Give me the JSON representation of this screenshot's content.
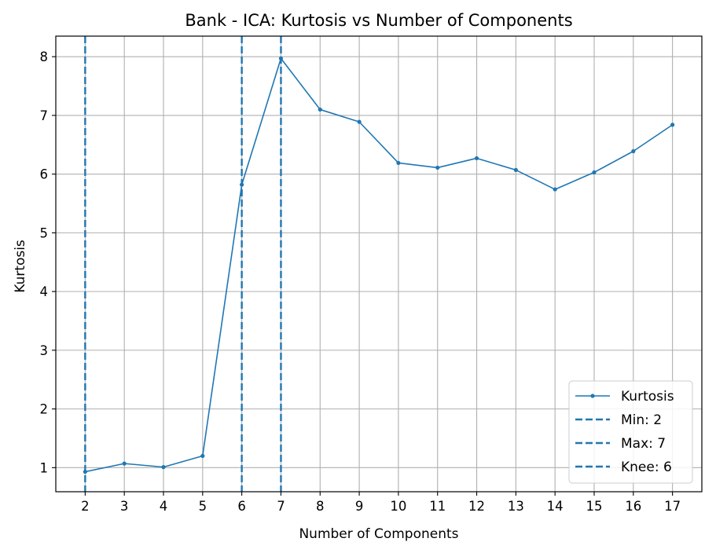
{
  "chart_data": {
    "type": "line",
    "title": "Bank - ICA: Kurtosis vs Number of Components",
    "xlabel": "Number of Components",
    "ylabel": "Kurtosis",
    "x": [
      2,
      3,
      4,
      5,
      6,
      7,
      8,
      9,
      10,
      11,
      12,
      13,
      14,
      15,
      16,
      17
    ],
    "xlim": [
      1.25,
      17.75
    ],
    "ylim": [
      0.59,
      8.35
    ],
    "xticks": [
      "2",
      "3",
      "4",
      "5",
      "6",
      "7",
      "8",
      "9",
      "10",
      "11",
      "12",
      "13",
      "14",
      "15",
      "16",
      "17"
    ],
    "yticks": [
      "1",
      "2",
      "3",
      "4",
      "5",
      "6",
      "7",
      "8"
    ],
    "grid": true,
    "legend_position": "lower-right",
    "series": [
      {
        "name": "Kurtosis",
        "color": "#1f77b4",
        "marker": "dot",
        "values": [
          0.93,
          1.07,
          1.01,
          1.2,
          5.82,
          7.97,
          7.1,
          6.89,
          6.19,
          6.11,
          6.27,
          6.07,
          5.74,
          6.03,
          6.39,
          6.84
        ]
      }
    ],
    "vlines": [
      {
        "name": "Min: 2",
        "x": 2,
        "color": "#1f77b4",
        "style": "dashed"
      },
      {
        "name": "Max: 7",
        "x": 7,
        "color": "#1f77b4",
        "style": "dashed"
      },
      {
        "name": "Knee: 6",
        "x": 6,
        "color": "#1f77b4",
        "style": "dashed"
      }
    ]
  }
}
